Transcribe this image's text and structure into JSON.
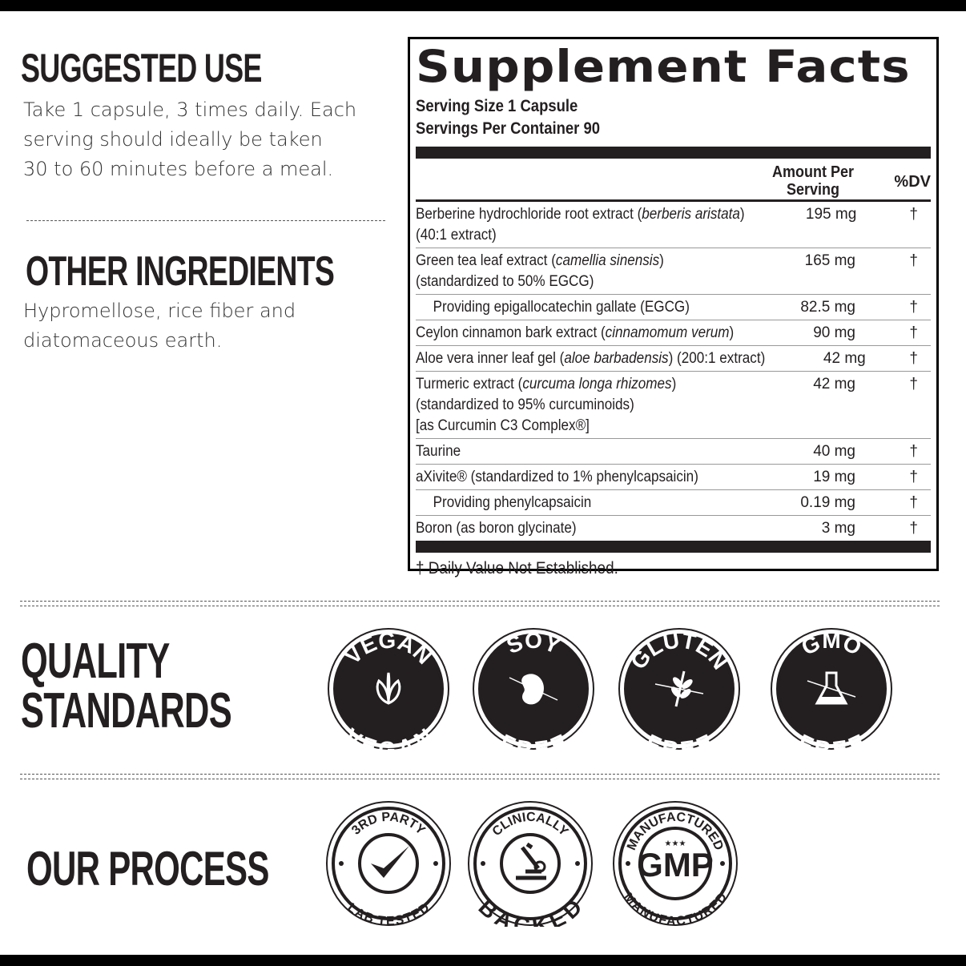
{
  "suggested_use": {
    "title": "SUGGESTED USE",
    "lines": [
      "Take 1 capsule, 3 times daily. Each",
      "serving should ideally be taken",
      "30 to 60 minutes before a meal."
    ]
  },
  "other_ingredients": {
    "title": "OTHER INGREDIENTS",
    "lines": [
      "Hypromellose, rice fiber and",
      "diatomaceous earth."
    ]
  },
  "facts": {
    "title": "Supplement Facts",
    "serving_size": "Serving Size 1 Capsule",
    "servings_per_container": "Servings Per Container 90",
    "col_amount": [
      "Amount Per",
      "Serving"
    ],
    "col_dv": "%DV",
    "rows": [
      {
        "name": "Berberine hydrochloride root extract (",
        "latin": "berberis aristata",
        "after": ")",
        "line2": "(40:1 extract)",
        "amount": "195 mg",
        "dv": "†"
      },
      {
        "name": "Green tea leaf extract (",
        "latin": "camellia sinensis",
        "after": ")",
        "line2": "(standardized to 50% EGCG)",
        "amount": "165 mg",
        "dv": "†"
      },
      {
        "name": "Providing epigallocatechin gallate (EGCG)",
        "amount": "82.5 mg",
        "dv": "†",
        "indent": true
      },
      {
        "name": "Ceylon cinnamon bark extract (",
        "latin": "cinnamomum verum",
        "after": ")",
        "amount": "90 mg",
        "dv": "†"
      },
      {
        "name": "Aloe vera inner leaf gel (",
        "latin": "aloe barbadensis",
        "after": ") (200:1 extract)",
        "amount": "42 mg",
        "dv": "†"
      },
      {
        "name": "Turmeric extract (",
        "latin": "curcuma longa rhizomes",
        "after": ")",
        "line2": "(standardized to 95% curcuminoids)",
        "line3": "[as Curcumin C3 Complex®]",
        "amount": "42 mg",
        "dv": "†"
      },
      {
        "name": "Taurine",
        "amount": "40 mg",
        "dv": "†"
      },
      {
        "name": "aXivite® (standardized to 1% phenylcapsaicin)",
        "amount": "19 mg",
        "dv": "†"
      },
      {
        "name": "Providing phenylcapsaicin",
        "amount": "0.19 mg",
        "dv": "†",
        "indent": true
      },
      {
        "name": "Boron (as boron glycinate)",
        "amount": "3 mg",
        "dv": "†"
      }
    ],
    "footnote": "† Daily Value Not Established."
  },
  "quality": {
    "title_lines": [
      "QUALITY",
      "STANDARDS"
    ],
    "badges": [
      {
        "top": "VEGAN",
        "bottom": "VEGAN",
        "icon": "leaf-icon"
      },
      {
        "top": "SOY",
        "bottom": "FREE",
        "icon": "soybean-icon"
      },
      {
        "top": "GLUTEN",
        "bottom": "FREE",
        "icon": "wheat-icon"
      },
      {
        "top": "GMO",
        "bottom": "FREE",
        "icon": "flask-icon"
      }
    ]
  },
  "process": {
    "title": "OUR PROCESS",
    "badges": [
      {
        "top": "3RD PARTY",
        "bottom": "LAB TESTED",
        "icon": "checkmark-icon"
      },
      {
        "top": "CLINICALLY",
        "bottom": "BACKED",
        "icon": "microscope-icon"
      },
      {
        "top": "MANUFACTURED",
        "bottom": "MANUFACTURED",
        "center": "GMP",
        "icon": "stars-icon"
      }
    ]
  }
}
